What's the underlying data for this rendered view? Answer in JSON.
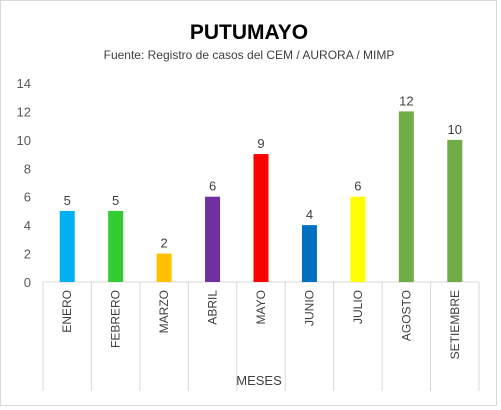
{
  "chart_data": {
    "type": "bar",
    "title": "PUTUMAYO",
    "subtitle": "Fuente: Registro de casos del CEM / AURORA / MIMP",
    "xlabel": "MESES",
    "ylabel": "",
    "ylim": [
      0,
      14
    ],
    "yticks": [
      0,
      2,
      4,
      6,
      8,
      10,
      12,
      14
    ],
    "grid": false,
    "categories": [
      "ENERO",
      "FEBRERO",
      "MARZO",
      "ABRIL",
      "MAYO",
      "JUNIO",
      "JULIO",
      "AGOSTO",
      "SETIEMBRE"
    ],
    "values": [
      5,
      5,
      2,
      6,
      9,
      4,
      6,
      12,
      10
    ],
    "colors": [
      "#00b0f0",
      "#33cc33",
      "#ffc000",
      "#7030a0",
      "#ff0000",
      "#0070c0",
      "#ffff00",
      "#70ad47",
      "#70ad47"
    ]
  }
}
